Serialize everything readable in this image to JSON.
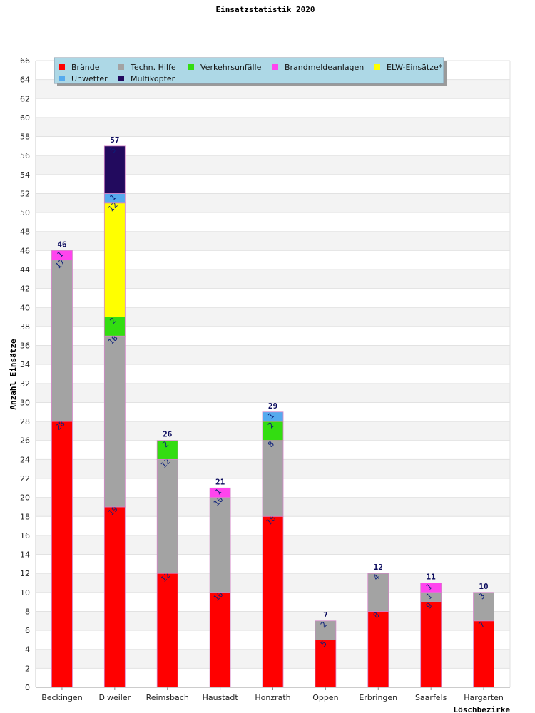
{
  "chart_data": {
    "type": "bar",
    "stacked": true,
    "title": "Einsatzstatistik 2020",
    "xlabel": "Löschbezirke",
    "ylabel": "Anzahl Einsätze",
    "ylim": [
      0,
      66
    ],
    "ytick_step": 2,
    "grid": true,
    "legend_position": "top-left",
    "categories": [
      "Beckingen",
      "D'weiler",
      "Reimsbach",
      "Haustadt",
      "Honzrath",
      "Oppen",
      "Erbringen",
      "Saarfels",
      "Hargarten"
    ],
    "totals": [
      "46",
      "57",
      "26",
      "21",
      "29",
      "7",
      "12",
      "11",
      "10"
    ],
    "series": [
      {
        "name": "Brände",
        "color": "#ff0000",
        "values": [
          28,
          19,
          12,
          10,
          18,
          5,
          8,
          9,
          7
        ]
      },
      {
        "name": "Techn. Hilfe",
        "color": "#a3a3a3",
        "values": [
          17,
          18,
          12,
          10,
          8,
          2,
          4,
          1,
          3
        ]
      },
      {
        "name": "Verkehrsunfälle",
        "color": "#33dd11",
        "values": [
          0,
          2,
          2,
          0,
          2,
          0,
          0,
          0,
          0
        ]
      },
      {
        "name": "Brandmeldeanlagen",
        "color": "#ff44ee",
        "values": [
          1,
          0,
          0,
          1,
          0,
          0,
          0,
          1,
          0
        ]
      },
      {
        "name": "ELW-Einsätze*",
        "color": "#ffff00",
        "values": [
          0,
          12,
          0,
          0,
          0,
          0,
          0,
          0,
          0
        ]
      },
      {
        "name": "Unwetter",
        "color": "#55aaee",
        "values": [
          0,
          1,
          0,
          0,
          1,
          0,
          0,
          0,
          0
        ]
      },
      {
        "name": "Multikopter",
        "color": "#220a5e",
        "values": [
          0,
          5,
          0,
          0,
          0,
          0,
          0,
          0,
          0
        ]
      }
    ]
  }
}
